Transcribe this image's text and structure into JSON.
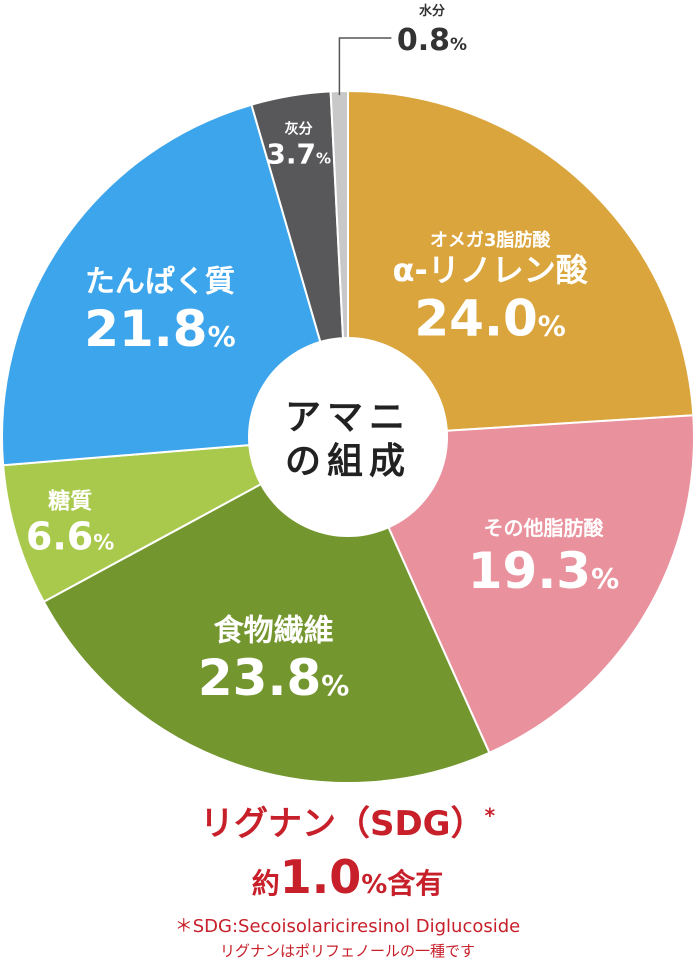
{
  "chart_data": {
    "type": "pie",
    "title": "アマニの組成",
    "center_label_lines": [
      "アマニ",
      "の組成"
    ],
    "unit": "%",
    "slices": [
      {
        "label": "オメガ3脂肪酸",
        "label2": "α-リノレン酸",
        "value": 24.0,
        "value_text": "24.0",
        "color": "#dba53d"
      },
      {
        "label": "その他脂肪酸",
        "value": 19.3,
        "value_text": "19.3",
        "color": "#e9919c"
      },
      {
        "label": "食物繊維",
        "value": 23.8,
        "value_text": "23.8",
        "color": "#74962f"
      },
      {
        "label": "糖質",
        "value": 6.6,
        "value_text": "6.6",
        "color": "#a9c94c"
      },
      {
        "label": "たんぱく質",
        "value": 21.8,
        "value_text": "21.8",
        "color": "#3ca5ec"
      },
      {
        "label": "灰分",
        "value": 3.7,
        "value_text": "3.7",
        "color": "#58585a"
      },
      {
        "label": "水分",
        "value": 0.8,
        "value_text": "0.8",
        "color": "#c8c8c8"
      }
    ]
  },
  "footer": {
    "lignan_title": "リグナン（SDG）",
    "lignan_mark": "*",
    "content_prefix": "約",
    "content_value": "1.0",
    "content_unit": "%",
    "content_suffix": "含有",
    "note_sdg": "＊SDG:Secoisolariciresinol Diglucoside",
    "note_lignan": "リグナンはポリフェノールの一種です"
  }
}
